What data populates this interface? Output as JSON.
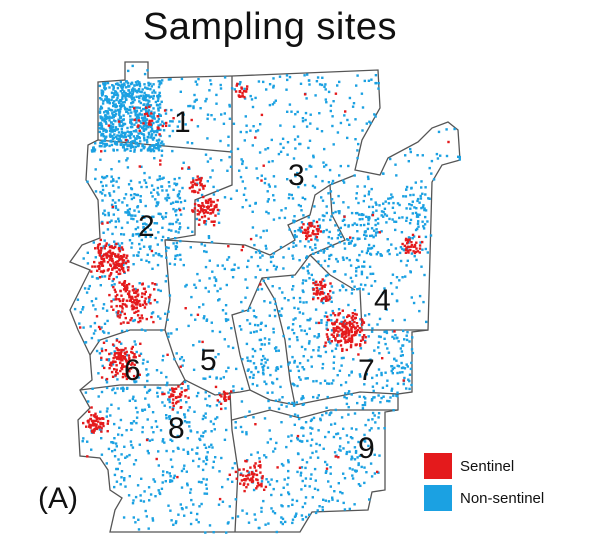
{
  "title": "Sampling sites",
  "panel_label": "(A)",
  "districts": [
    "1",
    "2",
    "3",
    "4",
    "5",
    "6",
    "7",
    "8",
    "9"
  ],
  "legend": [
    {
      "label": "Sentinel",
      "color": "#e41a1c"
    },
    {
      "label": "Non-sentinel",
      "color": "#1ba1e2"
    }
  ],
  "colors": {
    "sentinel": "#e41a1c",
    "non_sentinel": "#1ba1e2",
    "boundary": "#555555"
  }
}
